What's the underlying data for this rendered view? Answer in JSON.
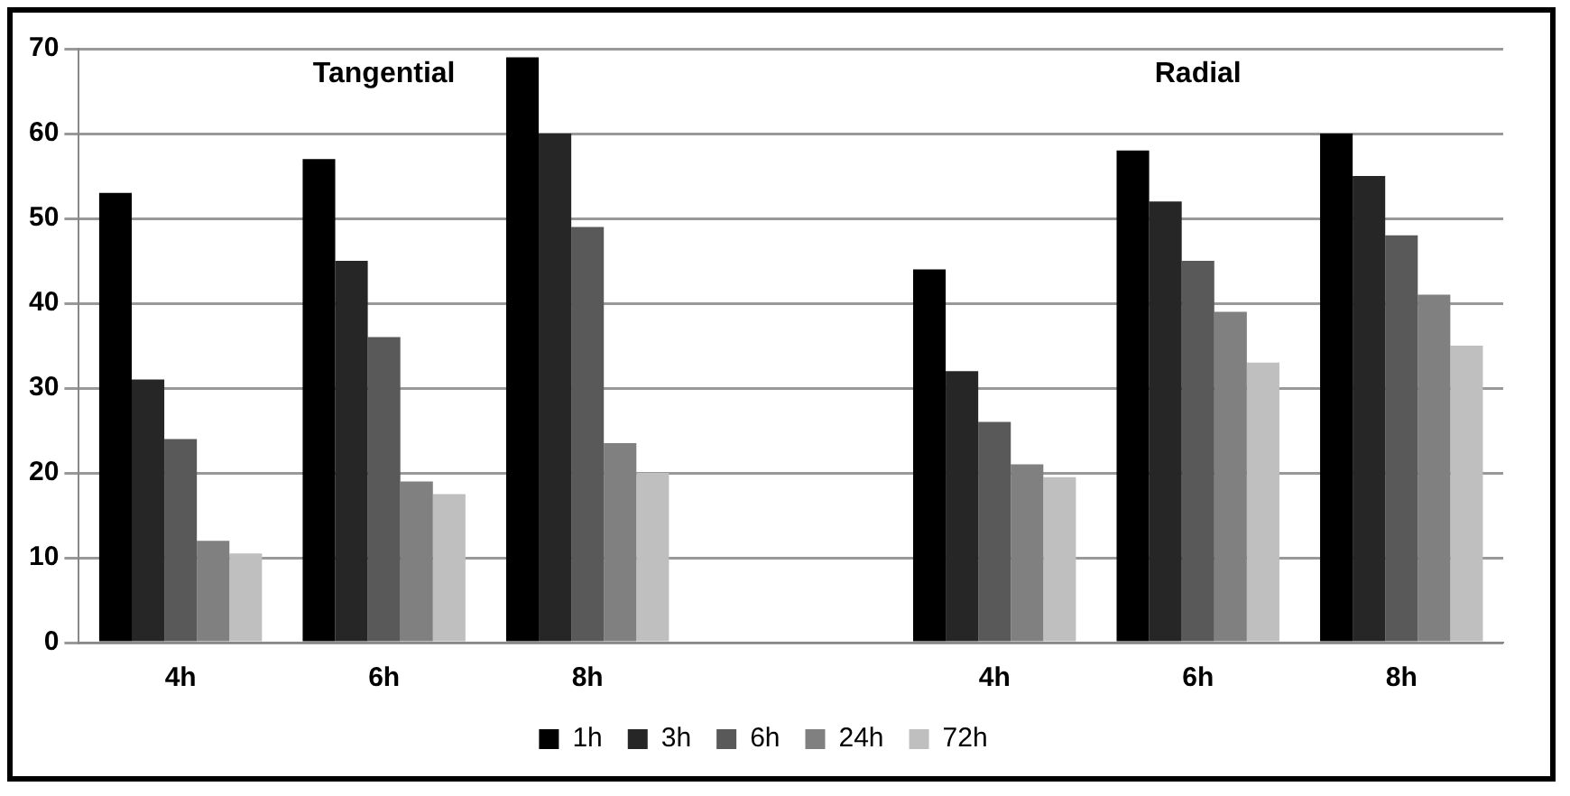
{
  "chart_data": {
    "type": "bar",
    "categories": [
      "4h",
      "6h",
      "8h",
      null,
      "4h",
      "6h",
      "8h"
    ],
    "series": [
      {
        "name": "1h",
        "color": "#000000",
        "values": [
          53,
          57,
          69,
          null,
          44,
          58,
          60
        ]
      },
      {
        "name": "3h",
        "color": "#262626",
        "values": [
          31,
          45,
          60,
          null,
          32,
          52,
          55
        ]
      },
      {
        "name": "6h",
        "color": "#595959",
        "values": [
          24,
          36,
          49,
          null,
          26,
          45,
          48
        ]
      },
      {
        "name": "24h",
        "color": "#808080",
        "values": [
          12,
          19,
          23.5,
          null,
          21,
          39,
          41
        ]
      },
      {
        "name": "72h",
        "color": "#bfbfbf",
        "values": [
          10.5,
          17.5,
          20,
          null,
          19.5,
          33,
          35
        ]
      }
    ],
    "ylim": [
      0,
      70
    ],
    "yticks": [
      0,
      10,
      20,
      30,
      40,
      50,
      60,
      70
    ],
    "grid": "y",
    "legend": "bottom",
    "annotations": [
      "Tangential",
      "Radial"
    ]
  }
}
